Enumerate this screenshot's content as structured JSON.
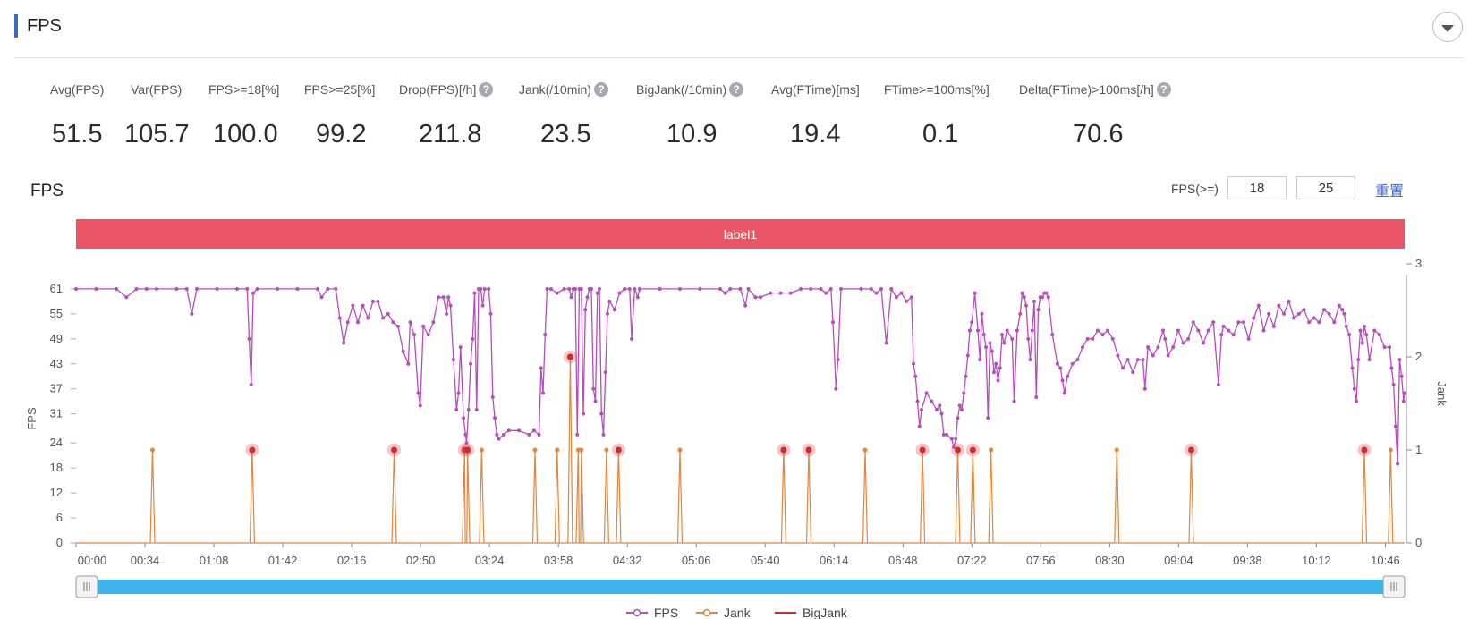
{
  "header": {
    "title": "FPS"
  },
  "stats": [
    {
      "label": "Avg(FPS)",
      "value": "51.5",
      "help": false
    },
    {
      "label": "Var(FPS)",
      "value": "105.7",
      "help": false
    },
    {
      "label": "FPS>=18[%]",
      "value": "100.0",
      "help": false
    },
    {
      "label": "FPS>=25[%]",
      "value": "99.2",
      "help": false
    },
    {
      "label": "Drop(FPS)[/h]",
      "value": "211.8",
      "help": true
    },
    {
      "label": "Jank(/10min)",
      "value": "23.5",
      "help": true
    },
    {
      "label": "BigJank(/10min)",
      "value": "10.9",
      "help": true
    },
    {
      "label": "Avg(FTime)[ms]",
      "value": "19.4",
      "help": false
    },
    {
      "label": "FTime>=100ms[%]",
      "value": "0.1",
      "help": false
    },
    {
      "label": "Delta(FTime)>100ms[/h]",
      "value": "70.6",
      "help": true
    }
  ],
  "help_glyph": "?",
  "chart_section": {
    "title": "FPS",
    "threshold_label": "FPS(>=)",
    "threshold_1": "18",
    "threshold_2": "25",
    "reset_label": "重置",
    "band_label": "label1",
    "band_color": "#ec5566",
    "scrollbar_color": "#3bb5f0"
  },
  "chart_data": {
    "type": "line",
    "ylabel": "FPS",
    "y2label": "Jank",
    "yticks": [
      0,
      6,
      12,
      18,
      24,
      31,
      37,
      43,
      49,
      55,
      61
    ],
    "ylim": [
      0,
      67
    ],
    "y2ticks": [
      0,
      1,
      2,
      3
    ],
    "y2lim": [
      0,
      3
    ],
    "xticks": [
      "00:00",
      "00:34",
      "01:08",
      "01:42",
      "02:16",
      "02:50",
      "03:24",
      "03:58",
      "04:32",
      "05:06",
      "05:40",
      "06:14",
      "06:48",
      "07:22",
      "07:56",
      "08:30",
      "09:04",
      "09:38",
      "10:12",
      "10:46"
    ],
    "xrange_seconds": [
      0,
      1320
    ],
    "legend": [
      "FPS",
      "Jank",
      "BigJank"
    ],
    "legend_position": "bottom",
    "colors": {
      "FPS": "#b84bbf",
      "Jank": "#e5843a",
      "BigJank": "#c9302c"
    },
    "fps_series": [
      [
        0,
        61
      ],
      [
        20,
        61
      ],
      [
        40,
        61
      ],
      [
        50,
        59
      ],
      [
        60,
        61
      ],
      [
        70,
        61
      ],
      [
        80,
        61
      ],
      [
        100,
        61
      ],
      [
        110,
        61
      ],
      [
        115,
        55
      ],
      [
        120,
        61
      ],
      [
        140,
        61
      ],
      [
        160,
        61
      ],
      [
        170,
        61
      ],
      [
        172,
        49
      ],
      [
        174,
        38
      ],
      [
        176,
        60
      ],
      [
        180,
        61
      ],
      [
        200,
        61
      ],
      [
        220,
        61
      ],
      [
        240,
        61
      ],
      [
        244,
        59
      ],
      [
        250,
        61
      ],
      [
        258,
        61
      ],
      [
        262,
        54
      ],
      [
        266,
        48
      ],
      [
        270,
        53
      ],
      [
        275,
        57
      ],
      [
        280,
        53
      ],
      [
        285,
        57
      ],
      [
        290,
        54
      ],
      [
        295,
        58
      ],
      [
        300,
        58
      ],
      [
        305,
        54
      ],
      [
        310,
        55
      ],
      [
        315,
        53
      ],
      [
        320,
        52
      ],
      [
        325,
        46
      ],
      [
        330,
        43
      ],
      [
        332,
        53
      ],
      [
        336,
        50
      ],
      [
        340,
        36
      ],
      [
        342,
        33
      ],
      [
        345,
        52
      ],
      [
        350,
        50
      ],
      [
        355,
        53
      ],
      [
        360,
        59
      ],
      [
        365,
        59
      ],
      [
        368,
        55
      ],
      [
        370,
        59
      ],
      [
        372,
        57
      ],
      [
        375,
        44
      ],
      [
        378,
        32
      ],
      [
        380,
        36
      ],
      [
        382,
        47
      ],
      [
        385,
        30
      ],
      [
        387,
        26
      ],
      [
        388,
        24
      ],
      [
        390,
        32
      ],
      [
        392,
        43
      ],
      [
        394,
        49
      ],
      [
        396,
        60
      ],
      [
        398,
        32
      ],
      [
        400,
        61
      ],
      [
        402,
        61
      ],
      [
        404,
        57
      ],
      [
        406,
        61
      ],
      [
        410,
        61
      ],
      [
        412,
        55
      ],
      [
        414,
        35
      ],
      [
        416,
        30
      ],
      [
        418,
        26
      ],
      [
        420,
        25
      ],
      [
        425,
        26
      ],
      [
        430,
        27
      ],
      [
        440,
        27
      ],
      [
        450,
        26
      ],
      [
        455,
        27
      ],
      [
        460,
        26
      ],
      [
        462,
        42
      ],
      [
        464,
        36
      ],
      [
        466,
        50
      ],
      [
        468,
        61
      ],
      [
        472,
        61
      ],
      [
        478,
        60
      ],
      [
        485,
        61
      ],
      [
        490,
        61
      ],
      [
        492,
        59
      ],
      [
        494,
        61
      ],
      [
        496,
        61
      ],
      [
        498,
        26
      ],
      [
        500,
        61
      ],
      [
        502,
        61
      ],
      [
        504,
        31
      ],
      [
        506,
        56
      ],
      [
        508,
        59
      ],
      [
        510,
        61
      ],
      [
        512,
        61
      ],
      [
        514,
        37
      ],
      [
        516,
        34
      ],
      [
        518,
        60
      ],
      [
        520,
        61
      ],
      [
        522,
        31
      ],
      [
        524,
        26
      ],
      [
        526,
        41
      ],
      [
        528,
        55
      ],
      [
        530,
        58
      ],
      [
        535,
        56
      ],
      [
        540,
        60
      ],
      [
        545,
        61
      ],
      [
        550,
        61
      ],
      [
        552,
        49
      ],
      [
        555,
        61
      ],
      [
        558,
        59
      ],
      [
        560,
        61
      ],
      [
        580,
        61
      ],
      [
        600,
        61
      ],
      [
        620,
        61
      ],
      [
        640,
        61
      ],
      [
        645,
        60
      ],
      [
        650,
        61
      ],
      [
        660,
        61
      ],
      [
        665,
        57
      ],
      [
        668,
        61
      ],
      [
        675,
        59
      ],
      [
        680,
        59
      ],
      [
        690,
        60
      ],
      [
        700,
        60
      ],
      [
        710,
        60
      ],
      [
        720,
        61
      ],
      [
        730,
        61
      ],
      [
        740,
        61
      ],
      [
        745,
        60
      ],
      [
        750,
        61
      ],
      [
        752,
        53
      ],
      [
        755,
        37
      ],
      [
        757,
        44
      ],
      [
        760,
        61
      ],
      [
        780,
        61
      ],
      [
        790,
        61
      ],
      [
        795,
        60
      ],
      [
        800,
        61
      ],
      [
        805,
        48
      ],
      [
        810,
        61
      ],
      [
        815,
        59
      ],
      [
        820,
        60
      ],
      [
        825,
        58
      ],
      [
        830,
        59
      ],
      [
        832,
        43
      ],
      [
        834,
        40
      ],
      [
        836,
        34
      ],
      [
        838,
        28
      ],
      [
        840,
        32
      ],
      [
        845,
        36
      ],
      [
        850,
        34
      ],
      [
        855,
        32
      ],
      [
        858,
        33
      ],
      [
        860,
        31
      ],
      [
        862,
        26
      ],
      [
        865,
        26
      ],
      [
        870,
        25
      ],
      [
        872,
        23
      ],
      [
        874,
        25
      ],
      [
        876,
        30
      ],
      [
        878,
        33
      ],
      [
        880,
        32
      ],
      [
        882,
        36
      ],
      [
        884,
        40
      ],
      [
        886,
        45
      ],
      [
        888,
        51
      ],
      [
        890,
        53
      ],
      [
        893,
        60
      ],
      [
        896,
        51
      ],
      [
        898,
        44
      ],
      [
        900,
        55
      ],
      [
        902,
        50
      ],
      [
        904,
        47
      ],
      [
        906,
        30
      ],
      [
        908,
        48
      ],
      [
        910,
        46
      ],
      [
        912,
        41
      ],
      [
        914,
        43
      ],
      [
        916,
        39
      ],
      [
        918,
        42
      ],
      [
        920,
        50
      ],
      [
        922,
        48
      ],
      [
        925,
        51
      ],
      [
        930,
        49
      ],
      [
        932,
        34
      ],
      [
        935,
        51
      ],
      [
        938,
        55
      ],
      [
        940,
        60
      ],
      [
        942,
        59
      ],
      [
        944,
        57
      ],
      [
        946,
        49
      ],
      [
        948,
        44
      ],
      [
        950,
        51
      ],
      [
        952,
        58
      ],
      [
        954,
        35
      ],
      [
        956,
        56
      ],
      [
        958,
        59
      ],
      [
        960,
        59
      ],
      [
        962,
        60
      ],
      [
        964,
        60
      ],
      [
        966,
        59
      ],
      [
        970,
        50
      ],
      [
        975,
        43
      ],
      [
        978,
        42
      ],
      [
        980,
        39
      ],
      [
        982,
        36
      ],
      [
        985,
        40
      ],
      [
        990,
        43
      ],
      [
        995,
        44
      ],
      [
        1000,
        47
      ],
      [
        1005,
        49
      ],
      [
        1010,
        49
      ],
      [
        1015,
        51
      ],
      [
        1020,
        50
      ],
      [
        1025,
        51
      ],
      [
        1030,
        49
      ],
      [
        1035,
        45
      ],
      [
        1040,
        42
      ],
      [
        1045,
        44
      ],
      [
        1050,
        41
      ],
      [
        1055,
        44
      ],
      [
        1060,
        44
      ],
      [
        1062,
        37
      ],
      [
        1065,
        47
      ],
      [
        1070,
        45
      ],
      [
        1075,
        47
      ],
      [
        1080,
        51
      ],
      [
        1082,
        49
      ],
      [
        1085,
        45
      ],
      [
        1090,
        47
      ],
      [
        1095,
        51
      ],
      [
        1100,
        48
      ],
      [
        1105,
        49
      ],
      [
        1110,
        53
      ],
      [
        1115,
        51
      ],
      [
        1120,
        48
      ],
      [
        1125,
        51
      ],
      [
        1130,
        53
      ],
      [
        1135,
        38
      ],
      [
        1138,
        50
      ],
      [
        1140,
        52
      ],
      [
        1145,
        51
      ],
      [
        1150,
        50
      ],
      [
        1155,
        53
      ],
      [
        1160,
        53
      ],
      [
        1165,
        49
      ],
      [
        1170,
        54
      ],
      [
        1175,
        57
      ],
      [
        1180,
        51
      ],
      [
        1185,
        55
      ],
      [
        1190,
        52
      ],
      [
        1195,
        57
      ],
      [
        1200,
        55
      ],
      [
        1205,
        58
      ],
      [
        1210,
        54
      ],
      [
        1215,
        55
      ],
      [
        1220,
        56
      ],
      [
        1225,
        53
      ],
      [
        1230,
        54
      ],
      [
        1235,
        53
      ],
      [
        1240,
        56
      ],
      [
        1245,
        55
      ],
      [
        1250,
        53
      ],
      [
        1255,
        57
      ],
      [
        1258,
        56
      ],
      [
        1260,
        55
      ],
      [
        1262,
        52
      ],
      [
        1265,
        50
      ],
      [
        1268,
        42
      ],
      [
        1270,
        37
      ],
      [
        1272,
        34
      ],
      [
        1274,
        44
      ],
      [
        1276,
        51
      ],
      [
        1278,
        48
      ],
      [
        1280,
        52
      ],
      [
        1282,
        50
      ],
      [
        1285,
        44
      ],
      [
        1290,
        51
      ],
      [
        1295,
        50
      ],
      [
        1300,
        47
      ],
      [
        1305,
        47
      ],
      [
        1307,
        42
      ],
      [
        1309,
        38
      ],
      [
        1311,
        28
      ],
      [
        1313,
        19
      ],
      [
        1315,
        44
      ],
      [
        1317,
        40
      ],
      [
        1319,
        34
      ],
      [
        1320,
        36
      ]
    ],
    "jank_spikes_seconds": [
      76,
      175,
      316,
      386,
      389,
      403,
      456,
      478,
      499,
      502,
      527,
      539,
      600,
      703,
      728,
      784,
      841,
      876,
      891,
      909,
      1034,
      1108,
      1280,
      1306
    ],
    "jank_spike_values": [
      1,
      1,
      1,
      1,
      1,
      1,
      1,
      1,
      1,
      1,
      1,
      1,
      1,
      1,
      1,
      1,
      1,
      1,
      1,
      1,
      1,
      1,
      1,
      1
    ],
    "big_jank_spike": {
      "t": 491,
      "value": 2
    },
    "big_jank_markers_seconds": [
      175,
      316,
      386,
      389,
      491,
      539,
      703,
      728,
      841,
      876,
      891,
      1108,
      1280
    ]
  }
}
